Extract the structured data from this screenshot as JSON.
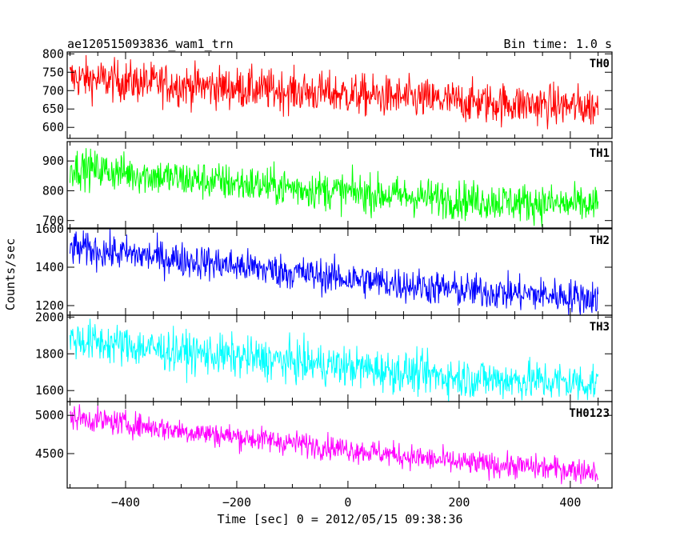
{
  "chart_data": {
    "type": "line",
    "title": "ae120515093836_wam1_trn",
    "subtitle": "Bin time: 1.0 s",
    "xlabel": "Time [sec] 0 = 2012/05/15 09:38:36",
    "ylabel": "Counts/sec",
    "xlim": [
      -505,
      475
    ],
    "xdata_range": [
      -500,
      450
    ],
    "xticks": [
      -400,
      -200,
      0,
      200,
      400
    ],
    "xtick_labels": [
      "−400",
      "−200",
      "0",
      "200",
      "400"
    ],
    "grid": false,
    "panels": [
      {
        "name": "TH0",
        "color": "#ff0000",
        "ylim": [
          570,
          805
        ],
        "yticks": [
          600,
          650,
          700,
          750,
          800
        ],
        "ytick_labels": [
          "600",
          "650",
          "700",
          "750",
          "800"
        ],
        "trend": {
          "x": [
            -500,
            -300,
            0,
            200,
            450
          ],
          "y": [
            735,
            715,
            690,
            670,
            655
          ]
        },
        "noise_amplitude": 28
      },
      {
        "name": "TH1",
        "color": "#00ff00",
        "ylim": [
          675,
          965
        ],
        "yticks": [
          700,
          800,
          900
        ],
        "ytick_labels": [
          "700",
          "800",
          "900"
        ],
        "trend": {
          "x": [
            -500,
            -300,
            0,
            200,
            450
          ],
          "y": [
            880,
            840,
            795,
            770,
            750
          ]
        },
        "noise_amplitude": 32
      },
      {
        "name": "TH2",
        "color": "#0000ff",
        "ylim": [
          1150,
          1600
        ],
        "yticks": [
          1200,
          1400,
          1600
        ],
        "ytick_labels": [
          "1200",
          "1400",
          "1600"
        ],
        "trend": {
          "x": [
            -500,
            -300,
            0,
            200,
            450
          ],
          "y": [
            1500,
            1440,
            1340,
            1280,
            1240
          ]
        },
        "noise_amplitude": 45
      },
      {
        "name": "TH3",
        "color": "#00ffff",
        "ylim": [
          1540,
          2010
        ],
        "yticks": [
          1600,
          1800,
          2000
        ],
        "ytick_labels": [
          "1600",
          "1800",
          "2000"
        ],
        "trend": {
          "x": [
            -500,
            -300,
            0,
            200,
            450
          ],
          "y": [
            1880,
            1810,
            1730,
            1670,
            1640
          ]
        },
        "noise_amplitude": 55
      },
      {
        "name": "TH0123",
        "color": "#ff00ff",
        "ylim": [
          4050,
          5180
        ],
        "yticks": [
          4500,
          5000
        ],
        "ytick_labels": [
          "4500",
          "5000"
        ],
        "trend": {
          "x": [
            -500,
            -300,
            0,
            200,
            450
          ],
          "y": [
            4980,
            4800,
            4560,
            4380,
            4270
          ]
        },
        "noise_amplitude": 80
      }
    ]
  }
}
